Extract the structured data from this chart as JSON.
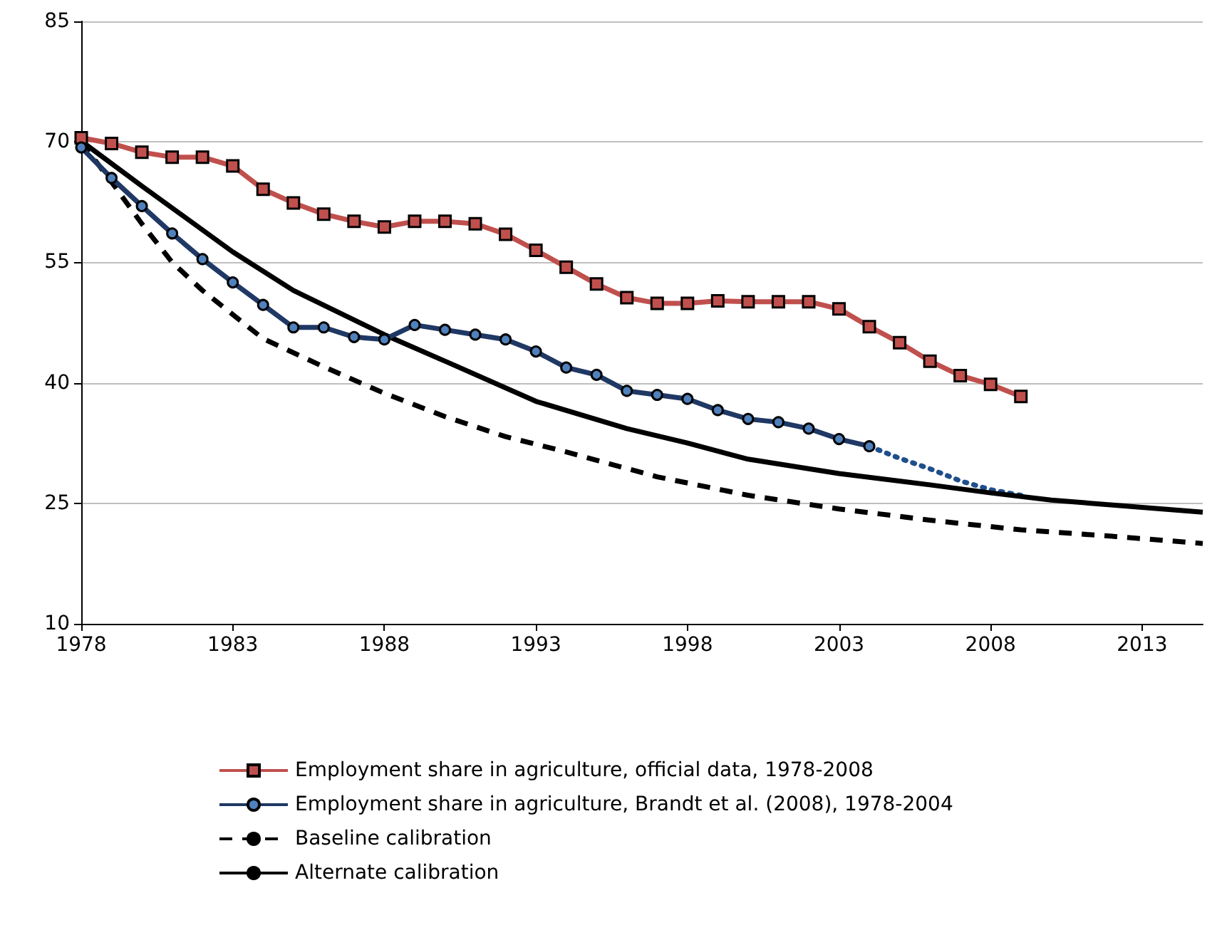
{
  "chart_data": {
    "type": "line",
    "xlim": [
      1978,
      2015
    ],
    "xticks": [
      1978,
      1983,
      1988,
      1993,
      1998,
      2003,
      2008,
      2013
    ],
    "ylim": [
      10,
      85
    ],
    "yticks": [
      10,
      25,
      40,
      55,
      70,
      85
    ],
    "grid": "y",
    "legend": "bottom",
    "series": [
      {
        "name": "Employment share in agriculture, official data, 1978-2008",
        "color": "#c0504d",
        "marker": "square",
        "line_style": "solid",
        "x": [
          1978,
          1979,
          1980,
          1981,
          1982,
          1983,
          1984,
          1985,
          1986,
          1987,
          1988,
          1989,
          1990,
          1991,
          1992,
          1993,
          1994,
          1995,
          1996,
          1997,
          1998,
          1999,
          2000,
          2001,
          2002,
          2003,
          2004,
          2005,
          2006,
          2007,
          2008,
          2009
        ],
        "values": [
          70.5,
          69.8,
          68.7,
          68.1,
          68.1,
          67.0,
          64.1,
          62.4,
          61.0,
          60.1,
          59.4,
          60.1,
          60.1,
          59.8,
          58.5,
          56.5,
          54.4,
          52.3,
          50.6,
          49.9,
          49.9,
          50.2,
          50.1,
          50.1,
          50.1,
          49.2,
          47.0,
          45.0,
          42.7,
          40.9,
          39.8,
          38.3
        ]
      },
      {
        "name": "Employment share in agriculture, Brandt et al. (2008), 1978-2004",
        "color": "#1f3864",
        "marker": "circle",
        "line_style": "solid",
        "x": [
          1978,
          1979,
          1980,
          1981,
          1982,
          1983,
          1984,
          1985,
          1986,
          1987,
          1988,
          1989,
          1990,
          1991,
          1992,
          1993,
          1994,
          1995,
          1996,
          1997,
          1998,
          1999,
          2000,
          2001,
          2002,
          2003,
          2004
        ],
        "values": [
          69.3,
          65.5,
          62.0,
          58.6,
          55.4,
          52.5,
          49.7,
          46.9,
          46.9,
          45.7,
          45.4,
          47.2,
          46.6,
          46.0,
          45.4,
          43.9,
          41.9,
          41.0,
          39.0,
          38.5,
          38.0,
          36.6,
          35.5,
          35.1,
          34.3,
          33.0,
          32.1
        ]
      },
      {
        "color": "#1f4e8c",
        "marker": "none",
        "line_style": "dotted",
        "x": [
          2004,
          2005,
          2006,
          2007,
          2008,
          2009
        ],
        "values": [
          32.1,
          30.6,
          29.3,
          27.8,
          26.7,
          26.0
        ]
      },
      {
        "name": "Baseline calibration",
        "color": "#000000",
        "marker": "none",
        "line_style": "dashed",
        "x": [
          1978,
          1979,
          1980,
          1981,
          1982,
          1984,
          1986,
          1988,
          1990,
          1992,
          1994,
          1997,
          2000,
          2003,
          2006,
          2009,
          2012,
          2015
        ],
        "values": [
          70,
          65,
          59.8,
          55,
          51.5,
          45.5,
          42.0,
          38.7,
          35.8,
          33.3,
          31.4,
          28.3,
          26.0,
          24.3,
          22.9,
          21.7,
          20.9,
          20.0
        ]
      },
      {
        "name": "Alternate calibration",
        "color": "#000000",
        "marker": "none",
        "line_style": "solid",
        "x": [
          1978,
          1980,
          1983,
          1985,
          1988,
          1990,
          1993,
          1996,
          1998,
          2000,
          2003,
          2006,
          2008,
          2010,
          2013,
          2015
        ],
        "values": [
          70.1,
          64.5,
          56.3,
          51.5,
          46.0,
          42.7,
          37.7,
          34.3,
          32.5,
          30.5,
          28.7,
          27.3,
          26.3,
          25.4,
          24.5,
          23.9
        ]
      }
    ]
  }
}
